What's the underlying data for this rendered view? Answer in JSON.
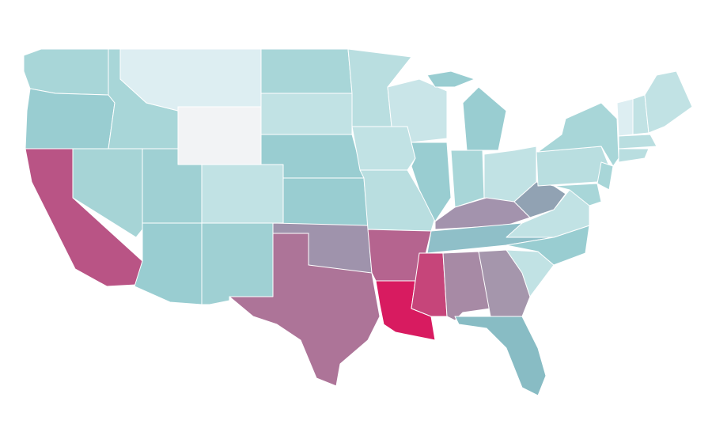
{
  "map": {
    "regions": [
      {
        "fill": "#a8d6d8"
      },
      {
        "fill": "#99cdd1"
      },
      {
        "fill": "#b95485"
      },
      {
        "fill": "#a6d4d6"
      },
      {
        "fill": "#a8d6d8"
      },
      {
        "fill": "#ddeef2"
      },
      {
        "fill": "#f2f3f5"
      },
      {
        "fill": "#9fd0d3"
      },
      {
        "fill": "#99cdd1"
      },
      {
        "fill": "#c1e2e4"
      },
      {
        "fill": "#9fd0d3"
      },
      {
        "fill": "#a8d6d8"
      },
      {
        "fill": "#c1e2e4"
      },
      {
        "fill": "#99cdd1"
      },
      {
        "fill": "#99cdd1"
      },
      {
        "fill": "#9f93ac"
      },
      {
        "fill": "#ad7498"
      },
      {
        "fill": "#b9dee0"
      },
      {
        "fill": "#c1e2e4"
      },
      {
        "fill": "#b9dee0"
      },
      {
        "fill": "#b5648f"
      },
      {
        "fill": "#d81b60"
      },
      {
        "fill": "#c9e5e8"
      },
      {
        "fill": "#99cdd1"
      },
      {
        "fill": "#99cdd1"
      },
      {
        "fill": "#a8d6d8"
      },
      {
        "fill": "#c1e2e4"
      },
      {
        "fill": "#a393ad"
      },
      {
        "fill": "#8fbfc8"
      },
      {
        "fill": "#c6457a"
      },
      {
        "fill": "#a78aa5"
      },
      {
        "fill": "#a596ac"
      },
      {
        "fill": "#88bcc4"
      },
      {
        "fill": "#c1e2e4"
      },
      {
        "fill": "#99cdd1"
      },
      {
        "fill": "#c1e2e4"
      },
      {
        "fill": "#91a2b3"
      },
      {
        "fill": "#b9dee0"
      },
      {
        "fill": "#a8d6d8"
      },
      {
        "fill": "#a8d6d8"
      },
      {
        "fill": "#a8d6d8"
      },
      {
        "fill": "#ddeef2"
      },
      {
        "fill": "#c1e2e4"
      },
      {
        "fill": "#c1e2e4"
      },
      {
        "fill": "#b9dee0"
      },
      {
        "fill": "#b9dee0"
      }
    ]
  }
}
